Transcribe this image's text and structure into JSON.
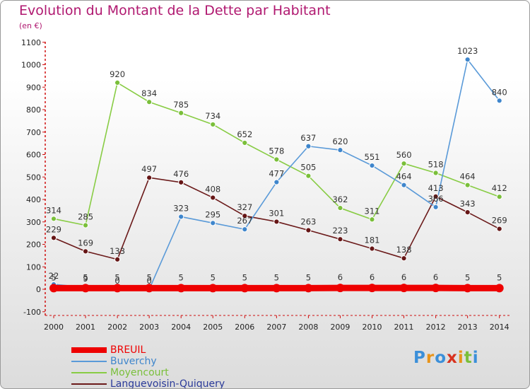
{
  "header": {
    "title": "Evolution du Montant de la Dette par Habitant",
    "unit": "(en €)"
  },
  "chart_data": {
    "type": "line",
    "title": "Evolution du Montant de la Dette par Habitant",
    "subtitle": "(en €)",
    "xlabel": "",
    "ylabel": "",
    "x": [
      "2000",
      "2001",
      "2002",
      "2003",
      "2004",
      "2005",
      "2006",
      "2007",
      "2008",
      "2009",
      "2010",
      "2011",
      "2012",
      "2013",
      "2014"
    ],
    "ylim": [
      -100,
      1100
    ],
    "yticks": [
      -100,
      0,
      100,
      200,
      300,
      400,
      500,
      600,
      700,
      800,
      900,
      1000,
      1100
    ],
    "grid": false,
    "legend": "bottom-left",
    "series": [
      {
        "name": "Moyencourt",
        "color": "#88cc44",
        "marker": "#7abf3a",
        "values": [
          314,
          285,
          920,
          834,
          785,
          734,
          652,
          578,
          505,
          362,
          311,
          560,
          518,
          464,
          412
        ],
        "labels": [
          "314",
          "285",
          "920",
          "834",
          "785",
          "734",
          "652",
          "578",
          "505",
          "362",
          "311",
          "560",
          "518",
          "464",
          "412"
        ]
      },
      {
        "name": "Languevoisin-Quiquery",
        "color": "#6b1a1a",
        "marker": "#661616",
        "values": [
          229,
          169,
          133,
          497,
          476,
          408,
          327,
          301,
          263,
          223,
          181,
          138,
          413,
          343,
          269
        ],
        "labels": [
          "229",
          "169",
          "133",
          "497",
          "476",
          "408",
          "327",
          "301",
          "263",
          "223",
          "181",
          "138",
          "413",
          "343",
          "269"
        ]
      },
      {
        "name": "Buverchy",
        "color": "#5a9ad8",
        "marker": "#3f86cc",
        "values": [
          22,
          9,
          0,
          0,
          323,
          295,
          267,
          477,
          637,
          620,
          551,
          464,
          366,
          1023,
          840
        ],
        "labels": [
          "22",
          "9",
          "0",
          "0",
          "323",
          "295",
          "267",
          "477",
          "637",
          "620",
          "551",
          "464",
          "366",
          "1023",
          "840"
        ]
      },
      {
        "name": "BREUIL",
        "color": "#ee0000",
        "marker": "#ee0000",
        "thick": true,
        "values": [
          5,
          5,
          5,
          5,
          5,
          5,
          5,
          5,
          5,
          6,
          6,
          6,
          6,
          5,
          5
        ],
        "labels": [
          "5",
          "5",
          "5",
          "5",
          "5",
          "5",
          "5",
          "5",
          "5",
          "6",
          "6",
          "6",
          "6",
          "5",
          "5"
        ]
      }
    ]
  },
  "legend": {
    "items": [
      {
        "label": "BREUIL",
        "color": "#ee0000",
        "label_color": "#ee0000"
      },
      {
        "label": "Buverchy",
        "color": "#5a9ad8",
        "label_color": "#3f86cc"
      },
      {
        "label": "Moyencourt",
        "color": "#88cc44",
        "label_color": "#7abf3a"
      },
      {
        "label": "Languevoisin-Quiquery",
        "color": "#6b1a1a",
        "label_color": "#2a3a99"
      }
    ]
  },
  "logo": {
    "letters": [
      "P",
      "r",
      "o",
      "x",
      "i",
      "t",
      "i"
    ],
    "colors": [
      "#3b8fd9",
      "#e8941a",
      "#3b8fd9",
      "#d8321e",
      "#e8941a",
      "#7abf3a",
      "#3b8fd9"
    ]
  }
}
